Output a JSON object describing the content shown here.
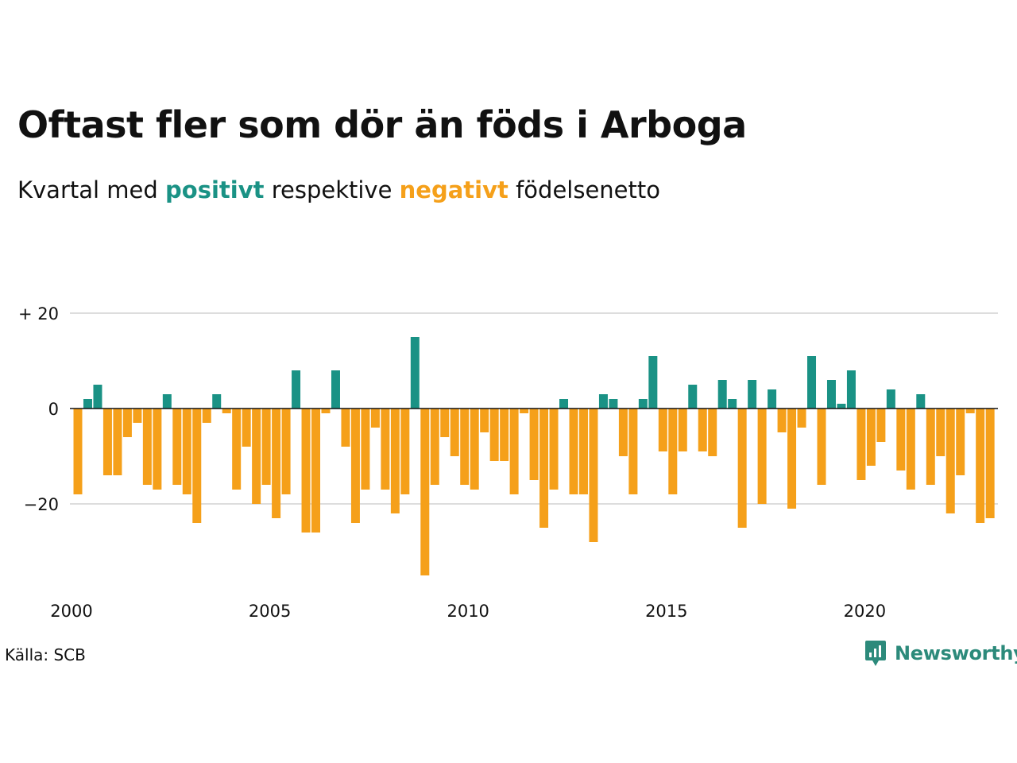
{
  "header": {
    "title": "Oftast fler som dör än föds i Arboga",
    "subtitle_prefix": "Kvartal med",
    "subtitle_pos": "positivt",
    "subtitle_mid": "respektive",
    "subtitle_neg": "negativt",
    "subtitle_suffix": "födelsenetto"
  },
  "footer": {
    "source": "Källa: SCB",
    "brand": "Newsworthy",
    "brand_icon": "newsworthy-logo-icon"
  },
  "colors": {
    "positive": "#1a9285",
    "negative": "#f5a01a",
    "grid": "#dddddd",
    "zero_line": "#111111",
    "brand": "#2c8a7b"
  },
  "chart_data": {
    "type": "bar",
    "x_start": "2000 Q1",
    "ylim": [
      -37,
      23
    ],
    "y_ticks": [
      {
        "value": 20,
        "label": "+ 20"
      },
      {
        "value": 0,
        "label": "0"
      },
      {
        "value": -20,
        "label": "−20"
      }
    ],
    "x_ticks": [
      {
        "label": "2000",
        "year": 2000
      },
      {
        "label": "2005",
        "year": 2005
      },
      {
        "label": "2010",
        "year": 2010
      },
      {
        "label": "2015",
        "year": 2015
      },
      {
        "label": "2020",
        "year": 2020
      }
    ],
    "grid": true,
    "legend": "none",
    "values": [
      -18,
      2,
      5,
      -14,
      -14,
      -6,
      -3,
      -16,
      -17,
      3,
      -16,
      -18,
      -24,
      -3,
      3,
      -1,
      -17,
      -8,
      -20,
      -16,
      -23,
      -18,
      8,
      -26,
      -26,
      -1,
      8,
      -8,
      -24,
      -17,
      -4,
      -17,
      -22,
      -18,
      15,
      -35,
      -16,
      -6,
      -10,
      -16,
      -17,
      -5,
      -11,
      -11,
      -18,
      -1,
      -15,
      -25,
      -17,
      2,
      -18,
      -18,
      -28,
      3,
      2,
      -10,
      -18,
      2,
      11,
      -9,
      -18,
      -9,
      5,
      -9,
      -10,
      6,
      2,
      -25,
      6,
      -20,
      4,
      -5,
      -21,
      -4,
      11,
      -16,
      6,
      1,
      8,
      -15,
      -12,
      -7,
      4,
      -13,
      -17,
      3,
      -16,
      -10,
      -22,
      -14,
      -1,
      -24,
      -23
    ]
  }
}
